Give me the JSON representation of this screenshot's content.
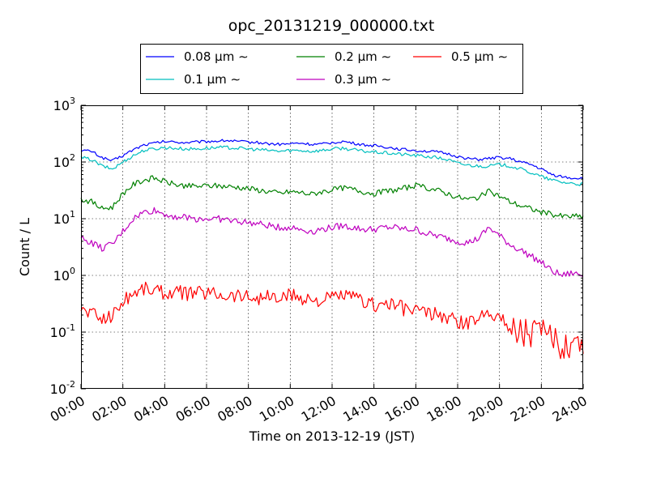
{
  "chart_data": {
    "type": "line",
    "title": "opc_20131219_000000.txt",
    "xlabel": "Time on 2013-12-19 (JST)",
    "ylabel": "Count / L",
    "x_ticks": [
      "00:00",
      "02:00",
      "04:00",
      "06:00",
      "08:00",
      "10:00",
      "12:00",
      "14:00",
      "16:00",
      "18:00",
      "20:00",
      "22:00",
      "24:00"
    ],
    "xlim": [
      0,
      24
    ],
    "y_scale": "log",
    "ylim": [
      0.01,
      1000
    ],
    "y_ticks": [
      {
        "base": "10",
        "exp": "-2"
      },
      {
        "base": "10",
        "exp": "-1"
      },
      {
        "base": "10",
        "exp": "0"
      },
      {
        "base": "10",
        "exp": "1"
      },
      {
        "base": "10",
        "exp": "2"
      },
      {
        "base": "10",
        "exp": "3"
      }
    ],
    "grid": true,
    "legend_position": "top-center",
    "x_hours": [
      0,
      0.5,
      1,
      1.5,
      2,
      2.5,
      3,
      3.5,
      4,
      4.5,
      5,
      5.5,
      6,
      6.5,
      7,
      7.5,
      8,
      8.5,
      9,
      9.5,
      10,
      10.5,
      11,
      11.5,
      12,
      12.5,
      13,
      13.5,
      14,
      14.5,
      15,
      15.5,
      16,
      16.5,
      17,
      17.5,
      18,
      18.5,
      19,
      19.5,
      20,
      20.5,
      21,
      21.5,
      22,
      22.5,
      23,
      23.5,
      24
    ],
    "series": [
      {
        "name": "0.08 μm ∼",
        "color": "#0000ff",
        "values": [
          160,
          155,
          120,
          105,
          130,
          165,
          200,
          215,
          230,
          225,
          220,
          225,
          230,
          235,
          240,
          230,
          225,
          220,
          210,
          205,
          210,
          215,
          205,
          205,
          220,
          230,
          215,
          200,
          195,
          185,
          175,
          165,
          160,
          155,
          150,
          140,
          125,
          115,
          110,
          115,
          120,
          115,
          100,
          90,
          75,
          60,
          55,
          52,
          52
        ]
      },
      {
        "name": "0.1 μm ∼",
        "color": "#00bfbf",
        "values": [
          120,
          110,
          85,
          75,
          100,
          130,
          160,
          170,
          180,
          175,
          170,
          170,
          175,
          180,
          180,
          175,
          170,
          165,
          160,
          155,
          160,
          160,
          155,
          160,
          170,
          175,
          165,
          155,
          150,
          145,
          140,
          135,
          130,
          125,
          120,
          110,
          95,
          88,
          85,
          85,
          90,
          85,
          75,
          65,
          55,
          48,
          44,
          42,
          40
        ]
      },
      {
        "name": "0.2 μm ∼",
        "color": "#008000",
        "values": [
          22,
          20,
          15,
          16,
          28,
          40,
          48,
          52,
          45,
          40,
          38,
          37,
          38,
          38,
          37,
          36,
          34,
          32,
          30,
          28,
          30,
          29,
          27,
          30,
          32,
          35,
          33,
          30,
          28,
          30,
          32,
          35,
          38,
          35,
          32,
          28,
          24,
          22,
          24,
          30,
          25,
          20,
          17,
          15,
          13,
          12,
          11,
          11,
          11
        ]
      },
      {
        "name": "0.3 μm ∼",
        "color": "#bf00bf",
        "values": [
          4.5,
          3.8,
          3.0,
          3.5,
          6.0,
          10,
          13,
          14,
          12,
          11,
          10.5,
          10,
          10,
          10,
          9.5,
          9,
          8.5,
          8,
          7.5,
          7,
          7,
          6.5,
          6,
          6.5,
          7,
          7.5,
          7,
          6.5,
          6.5,
          7,
          7,
          6.5,
          6.5,
          5.5,
          5,
          4.5,
          4,
          3.8,
          4.5,
          7,
          5,
          3.5,
          2.8,
          2.2,
          1.7,
          1.2,
          1.0,
          1.1,
          1.0
        ]
      },
      {
        "name": "0.5 μm ∼",
        "color": "#ff0000",
        "values": [
          0.25,
          0.22,
          0.17,
          0.2,
          0.35,
          0.5,
          0.6,
          0.55,
          0.5,
          0.5,
          0.48,
          0.5,
          0.5,
          0.48,
          0.45,
          0.45,
          0.42,
          0.4,
          0.42,
          0.38,
          0.45,
          0.4,
          0.38,
          0.35,
          0.4,
          0.45,
          0.4,
          0.35,
          0.3,
          0.32,
          0.3,
          0.25,
          0.25,
          0.22,
          0.2,
          0.18,
          0.15,
          0.14,
          0.18,
          0.25,
          0.18,
          0.12,
          0.11,
          0.1,
          0.09,
          0.07,
          0.06,
          0.07,
          0.07
        ]
      }
    ]
  }
}
